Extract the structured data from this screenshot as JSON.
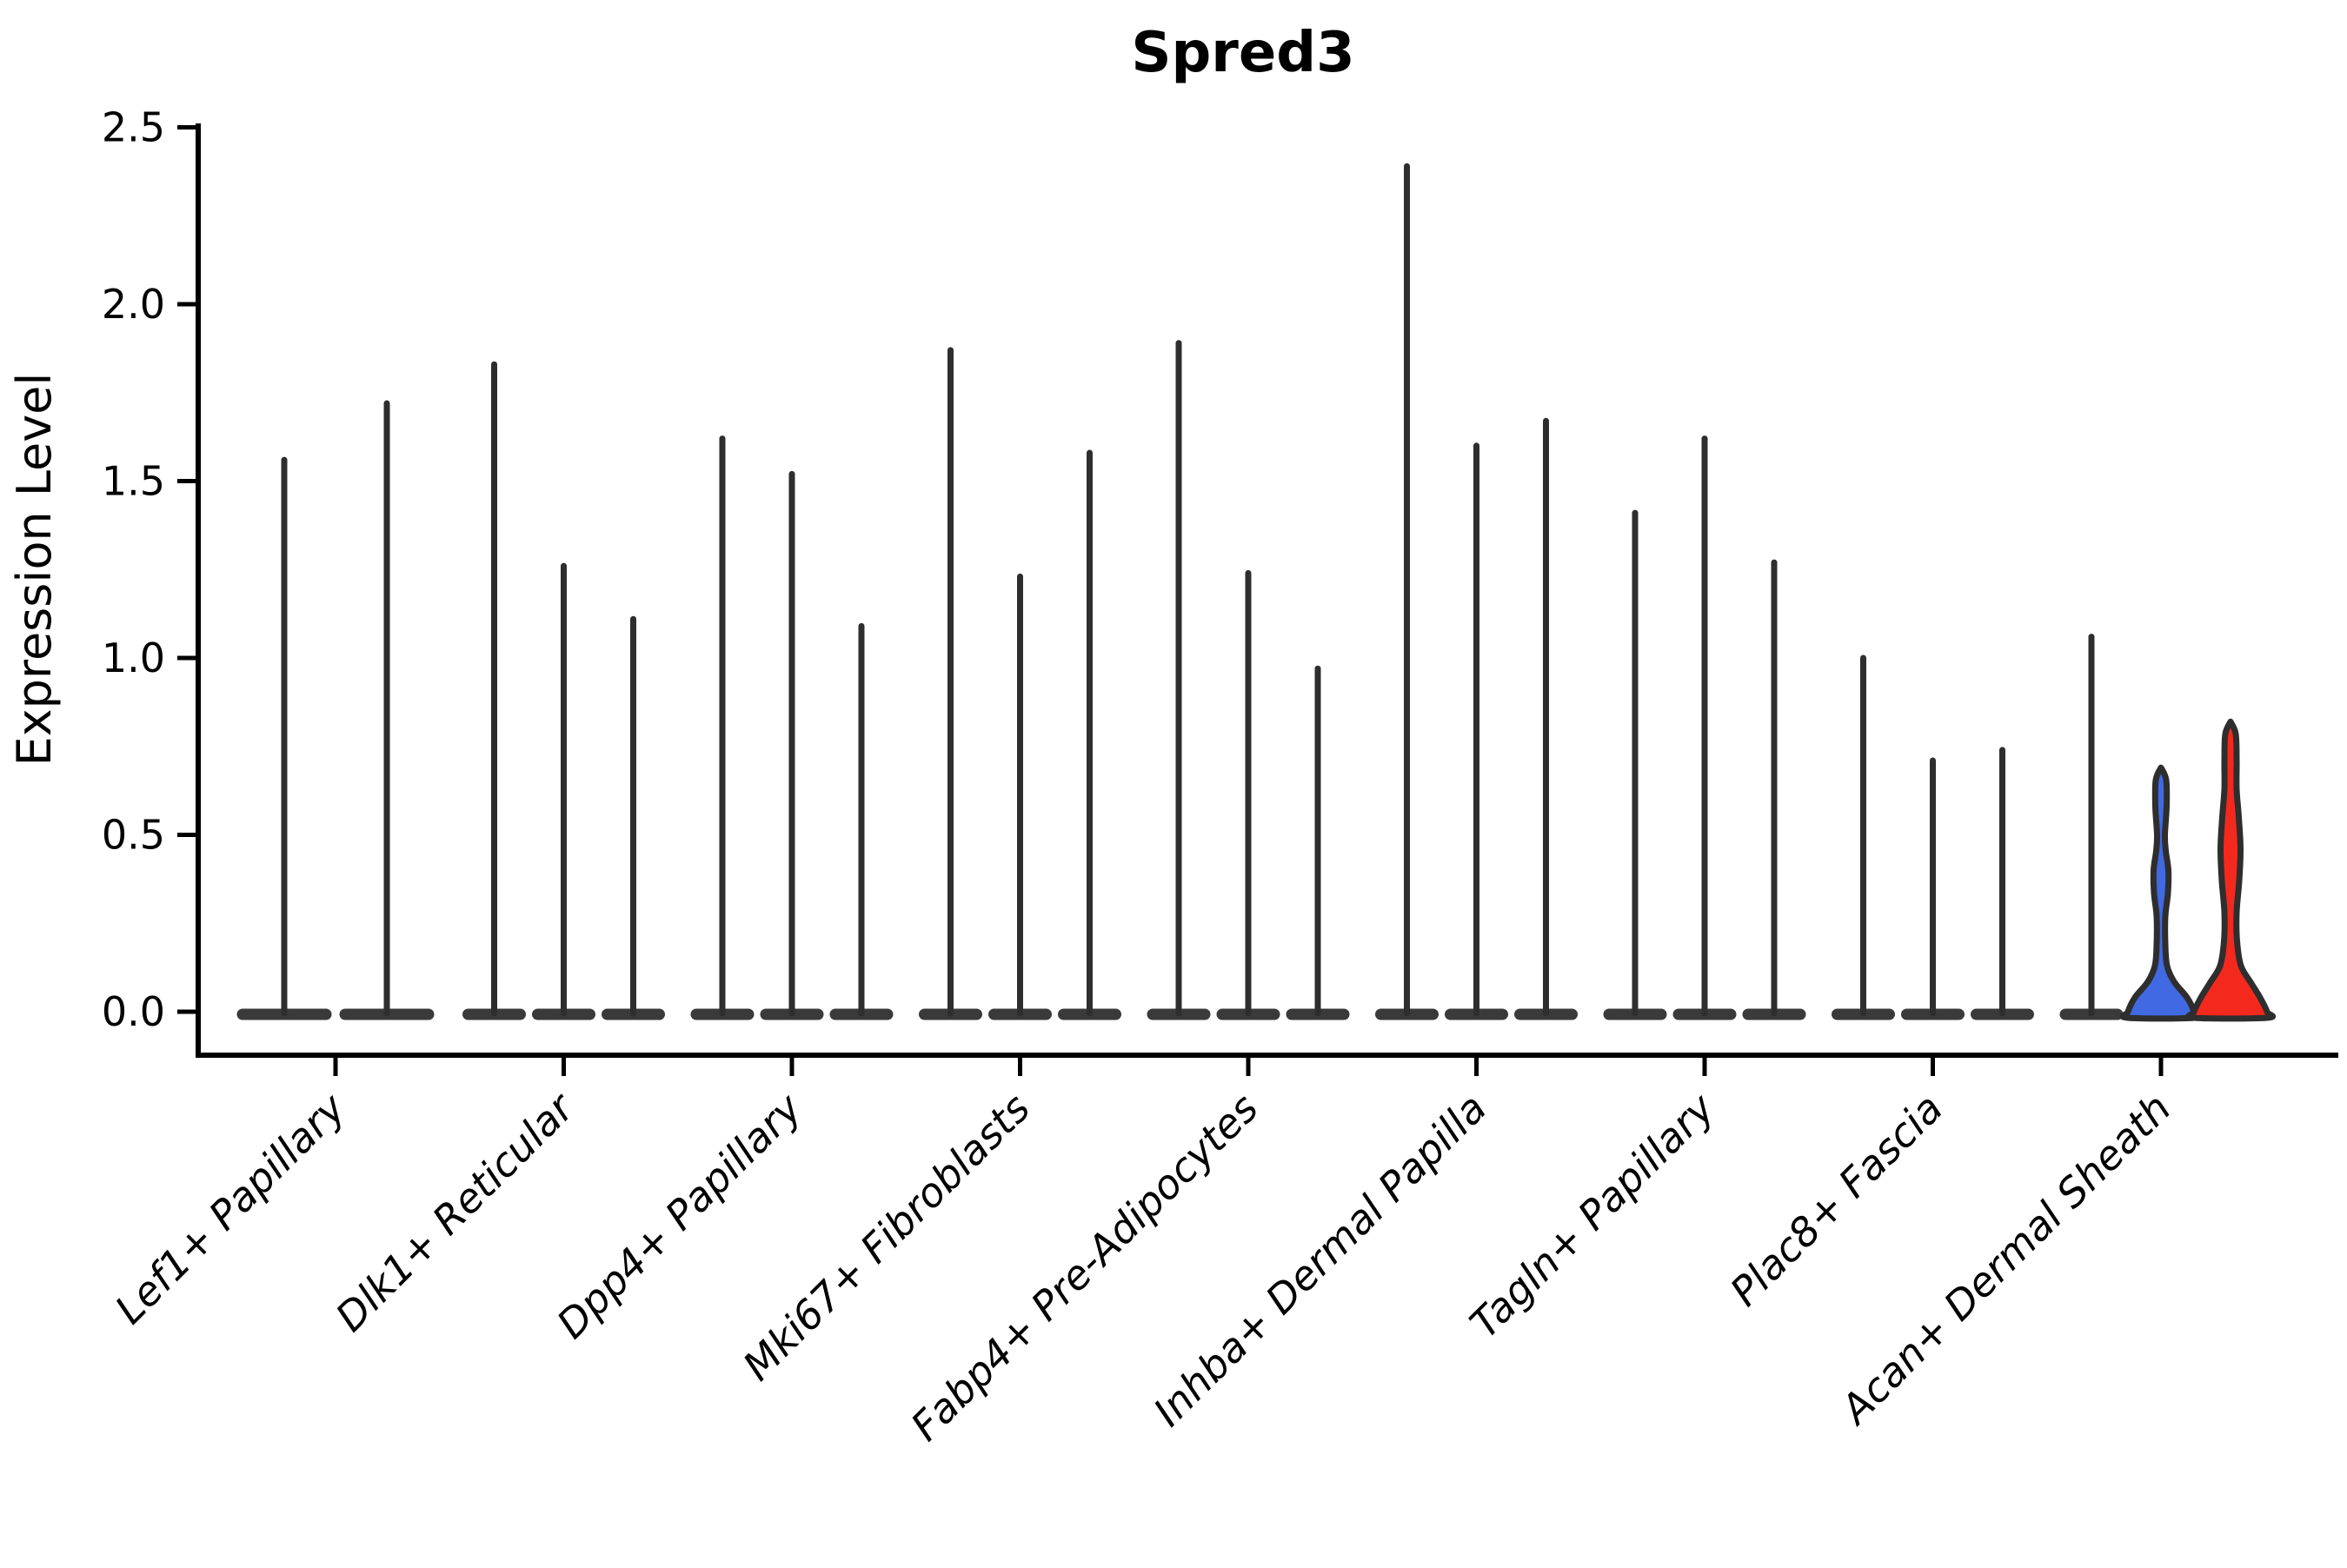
{
  "title": "Spred3",
  "y_axis": {
    "label": "Expression Level",
    "tick_labels": [
      "0.0",
      "0.5",
      "1.0",
      "1.5",
      "2.0",
      "2.5"
    ]
  },
  "colors": {
    "spike_stroke": "#2e2e2e",
    "base_fill": "#3a3a3a",
    "blue_violin": "#4169e1",
    "red_violin": "#f4291d",
    "axis": "#000000"
  },
  "chart_data": {
    "type": "violin",
    "title": "Spred3",
    "xlabel": "",
    "ylabel": "Expression Level",
    "ylim": [
      0,
      2.5
    ],
    "yticks": [
      0.0,
      0.5,
      1.0,
      1.5,
      2.0,
      2.5
    ],
    "grid": false,
    "legend": false,
    "x_tick_rotation": 45,
    "categories": [
      "Lef1+ Papillary",
      "Dlk1+ Reticular",
      "Dpp4+ Papillary",
      "Mki67+ Fibroblasts",
      "Fabp4+ Pre-Adipocytes",
      "Inhba+ Dermal Papilla",
      "Tagln+ Papillary",
      "Plac8+ Fascia",
      "Acan+ Dermal Sheath"
    ],
    "groups": [
      {
        "category": "Lef1+ Papillary",
        "violins": [
          {
            "style": "spike",
            "max": 1.56
          },
          {
            "style": "spike",
            "max": 1.72
          }
        ]
      },
      {
        "category": "Dlk1+ Reticular",
        "violins": [
          {
            "style": "spike",
            "max": 1.83
          },
          {
            "style": "spike",
            "max": 1.26
          },
          {
            "style": "spike",
            "max": 1.11
          }
        ]
      },
      {
        "category": "Dpp4+ Papillary",
        "violins": [
          {
            "style": "spike",
            "max": 1.62
          },
          {
            "style": "spike",
            "max": 1.52
          },
          {
            "style": "spike",
            "max": 1.09
          }
        ]
      },
      {
        "category": "Mki67+ Fibroblasts",
        "violins": [
          {
            "style": "spike",
            "max": 1.87
          },
          {
            "style": "spike",
            "max": 1.23
          },
          {
            "style": "spike",
            "max": 1.58
          }
        ]
      },
      {
        "category": "Fabp4+ Pre-Adipocytes",
        "violins": [
          {
            "style": "spike",
            "max": 1.89
          },
          {
            "style": "spike",
            "max": 1.24
          },
          {
            "style": "spike",
            "max": 0.97
          }
        ]
      },
      {
        "category": "Inhba+ Dermal Papilla",
        "violins": [
          {
            "style": "spike",
            "max": 2.39
          },
          {
            "style": "spike",
            "max": 1.6
          },
          {
            "style": "spike",
            "max": 1.67
          }
        ]
      },
      {
        "category": "Tagln+ Papillary",
        "violins": [
          {
            "style": "spike",
            "max": 1.41
          },
          {
            "style": "spike",
            "max": 1.62
          },
          {
            "style": "spike",
            "max": 1.27
          }
        ]
      },
      {
        "category": "Plac8+ Fascia",
        "violins": [
          {
            "style": "spike",
            "max": 1.0
          },
          {
            "style": "spike",
            "max": 0.71
          },
          {
            "style": "spike",
            "max": 0.74
          }
        ]
      },
      {
        "category": "Acan+ Dermal Sheath",
        "violins": [
          {
            "style": "spike",
            "max": 1.06
          },
          {
            "style": "violin",
            "max": 0.69,
            "color": "#4169e1",
            "profile": [
              [
                0.69,
                0
              ],
              [
                0.655,
                6
              ],
              [
                0.58,
                6.5
              ],
              [
                0.5,
                4.5
              ],
              [
                0.455,
                5.5
              ],
              [
                0.4,
                8.5
              ],
              [
                0.335,
                8
              ],
              [
                0.27,
                5
              ],
              [
                0.19,
                5
              ],
              [
                0.13,
                7
              ],
              [
                0.085,
                15
              ],
              [
                0.04,
                30
              ],
              [
                0.0,
                38
              ]
            ]
          },
          {
            "style": "violin",
            "max": 0.82,
            "color": "#f4291d",
            "profile": [
              [
                0.82,
                0
              ],
              [
                0.785,
                6
              ],
              [
                0.71,
                7
              ],
              [
                0.63,
                7
              ],
              [
                0.55,
                9.5
              ],
              [
                0.46,
                11.5
              ],
              [
                0.37,
                10
              ],
              [
                0.28,
                7
              ],
              [
                0.2,
                7.5
              ],
              [
                0.13,
                12
              ],
              [
                0.08,
                24
              ],
              [
                0.04,
                34
              ],
              [
                0.0,
                42
              ]
            ]
          }
        ]
      }
    ]
  }
}
